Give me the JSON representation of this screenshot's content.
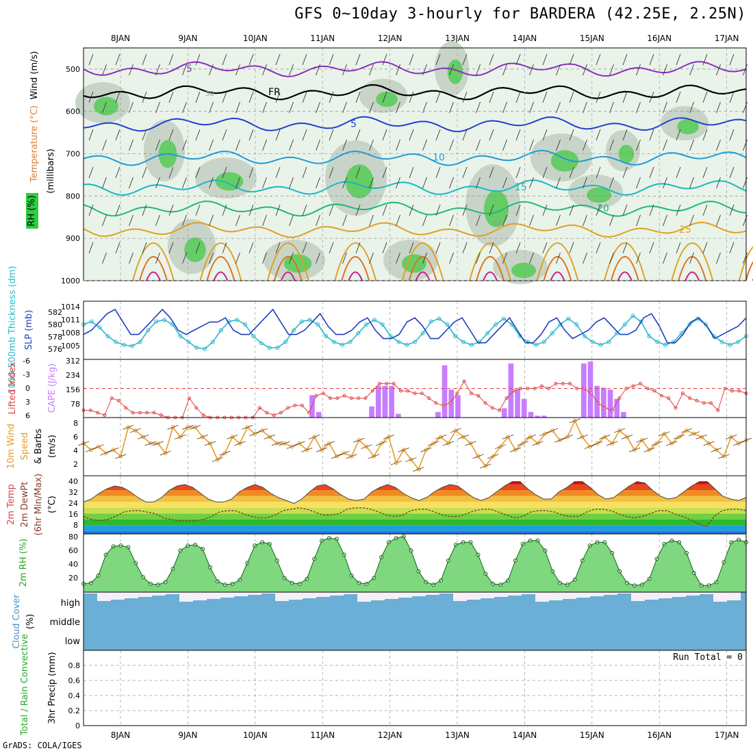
{
  "title": "GFS 0~10day 3-hourly for BARDERA (42.25E, 2.25N)",
  "credit": "GrADS: COLA/IGES",
  "dates": [
    "8JAN",
    "9JAN",
    "10JAN",
    "11JAN",
    "12JAN",
    "13JAN",
    "14JAN",
    "15JAN",
    "16JAN",
    "17JAN"
  ],
  "colors": {
    "rh_green": "#2ecc40",
    "wind_barb": "#333333",
    "cloud": "#6baed6",
    "cape": "#c77dff",
    "slp": "#1f3fbf",
    "thick": "#2ab7c9",
    "li": "#e04040",
    "wind": "#e69b2b",
    "rh2m": "#22bb22"
  },
  "chart_data": [
    {
      "type": "heatmap",
      "name": "upper-air",
      "ylabel_parts": [
        "Wind (m/s)",
        "Temperature (°C)",
        "RH (%)"
      ],
      "ylabel_axis": "(millibars)",
      "ylim": [
        1000,
        450
      ],
      "yticks": [
        500,
        600,
        700,
        800,
        900,
        1000
      ],
      "contours": [
        {
          "label": "5",
          "level_mb": 500,
          "color": "#8a2bbf"
        },
        {
          "label": "FR",
          "level_mb": 555,
          "color": "#000000"
        },
        {
          "label": "5",
          "level_mb": 630,
          "color": "#1f3fcf"
        },
        {
          "label": "10",
          "level_mb": 710,
          "color": "#1e9bd7"
        },
        {
          "label": "15",
          "level_mb": 780,
          "color": "#19b8c0"
        },
        {
          "label": "20",
          "level_mb": 830,
          "color": "#1fb87a"
        },
        {
          "label": "25",
          "level_mb": 880,
          "color": "#e0a020"
        }
      ],
      "rh_labels": [
        "30",
        "50"
      ]
    },
    {
      "type": "line",
      "name": "slp-thickness",
      "ylabel_left": "1000-500mb Thickness (dm)",
      "ylabel_right": "SLP (mb)",
      "left_ticks": [
        "582",
        "580",
        "578",
        "576"
      ],
      "right_ticks": [
        "1014",
        "1011",
        "1008",
        "1005"
      ],
      "slp": [
        1008,
        1009,
        1011,
        1013,
        1014,
        1011,
        1008,
        1008,
        1010,
        1012,
        1014,
        1012,
        1009,
        1008,
        1009,
        1010,
        1011,
        1011,
        1012,
        1009,
        1008,
        1008,
        1010,
        1012,
        1014,
        1011,
        1008,
        1008,
        1009,
        1011,
        1013,
        1010,
        1008,
        1008,
        1009,
        1011,
        1012,
        1009,
        1007,
        1007,
        1008,
        1011,
        1012,
        1010,
        1007,
        1007,
        1009,
        1011,
        1012,
        1009,
        1006,
        1006,
        1008,
        1010,
        1012,
        1009,
        1006,
        1006,
        1008,
        1011,
        1012,
        1009,
        1007,
        1008,
        1009,
        1011,
        1012,
        1010,
        1008,
        1008,
        1009,
        1012,
        1013,
        1010,
        1006,
        1006,
        1008,
        1011,
        1012,
        1010,
        1007,
        1008,
        1009,
        1010,
        1012
      ],
      "thickness": [
        580,
        580.5,
        579.5,
        578,
        577,
        576.5,
        576.3,
        577,
        579,
        580.5,
        580.8,
        580,
        578,
        577,
        576,
        575.8,
        577,
        579,
        580.5,
        580.8,
        580,
        578,
        576.8,
        576,
        576,
        577,
        579,
        580.5,
        580.8,
        580,
        578,
        577,
        576.5,
        577,
        578.5,
        580,
        580.8,
        580,
        578,
        577,
        576.5,
        577,
        578.5,
        580.5,
        581,
        580,
        578,
        577,
        576.5,
        577,
        578.5,
        580,
        581,
        580,
        578,
        577,
        576.5,
        577,
        578.5,
        580,
        581,
        580,
        578,
        577,
        576.5,
        577,
        578.5,
        580,
        581.5,
        580.5,
        578,
        577,
        576.5,
        577,
        578.5,
        580,
        581,
        580,
        578,
        577,
        576.5,
        577,
        578
      ]
    },
    {
      "type": "bar",
      "name": "cape-li",
      "ylabel_left": "Lifted Index",
      "ylabel_right": "CAPE (J/kg)",
      "li_ticks": [
        "-6",
        "-3",
        "0",
        "3",
        "6"
      ],
      "cape_ticks": [
        "312",
        "234",
        "156",
        "78"
      ],
      "cape": [
        0,
        0,
        0,
        0,
        0,
        0,
        0,
        0,
        0,
        0,
        0,
        0,
        0,
        0,
        0,
        0,
        0,
        0,
        0,
        0,
        0,
        0,
        0,
        0,
        0,
        0,
        0,
        0,
        0,
        0,
        0,
        0,
        0,
        0,
        120,
        30,
        0,
        0,
        0,
        0,
        0,
        0,
        0,
        60,
        170,
        170,
        170,
        20,
        0,
        0,
        0,
        0,
        0,
        30,
        280,
        150,
        120,
        0,
        0,
        0,
        0,
        0,
        0,
        50,
        290,
        150,
        100,
        30,
        10,
        10,
        0,
        0,
        0,
        0,
        0,
        290,
        300,
        170,
        160,
        150,
        100,
        30,
        0,
        0,
        0,
        0,
        0,
        0,
        0,
        0,
        0,
        0,
        0,
        0,
        0,
        0,
        0,
        0,
        0,
        0
      ],
      "li": [
        4.5,
        4.5,
        5,
        5.5,
        2,
        2.5,
        4,
        5,
        5,
        5,
        5,
        5.5,
        6,
        6,
        6,
        2,
        4,
        5.5,
        6,
        6,
        6,
        6,
        6,
        6,
        6,
        4,
        5,
        5.5,
        5,
        4,
        3.5,
        3.5,
        5,
        1.5,
        1,
        2,
        2,
        1.5,
        2,
        2,
        2,
        0.5,
        -1,
        -1,
        -1,
        0.5,
        0.5,
        1,
        1,
        2,
        3,
        3.5,
        3,
        1,
        -1.5,
        1,
        1.5,
        3,
        4,
        4.5,
        2,
        0.5,
        0,
        0,
        0,
        -0.5,
        0,
        -1,
        -1,
        -1,
        0,
        0,
        1,
        3,
        4,
        4.5,
        2,
        0,
        -0.5,
        -1,
        0,
        0.5,
        1.5,
        2,
        4,
        1,
        2,
        2.5,
        3,
        3,
        4.5,
        0,
        0.5,
        0.5,
        1
      ]
    },
    {
      "type": "line",
      "name": "wind10m",
      "ylabel": "10m Wind Speed & Barbs (m/s)",
      "yticks": [
        "8",
        "6",
        "4",
        "2"
      ],
      "speed": [
        5,
        4,
        4.5,
        3.5,
        4,
        3,
        7.5,
        7,
        6,
        5,
        5,
        3.5,
        7.5,
        6,
        7.5,
        7.5,
        6,
        5,
        2.5,
        3.5,
        6,
        5,
        7.5,
        6.5,
        7,
        6,
        5,
        5,
        4.5,
        5,
        4,
        6,
        4,
        5,
        3,
        3.5,
        3,
        5.5,
        4.5,
        3,
        5,
        6,
        2,
        4,
        2.5,
        1,
        4,
        5,
        6,
        5,
        7,
        6,
        5,
        3,
        1.5,
        3,
        4.5,
        6,
        4,
        5,
        6,
        5,
        6.5,
        7,
        5.5,
        6,
        8.5,
        6,
        4.5,
        5,
        6,
        5,
        7,
        6,
        4,
        5.5,
        4,
        5,
        6.5,
        5,
        6,
        7,
        6.5,
        6,
        5,
        4,
        3,
        6,
        5,
        5.5
      ]
    },
    {
      "type": "area",
      "name": "temp2m",
      "ylabel": "2m Temp 2m DewPt (6hr Min/Max) (°C)",
      "yticks": [
        "40",
        "32",
        "24",
        "16",
        "8"
      ],
      "temp": [
        24,
        26,
        30,
        33,
        35,
        34,
        31,
        27,
        24,
        24,
        27,
        32,
        35,
        36,
        34,
        30,
        26,
        24,
        24,
        26,
        31,
        34,
        36,
        34,
        30,
        27,
        25,
        23,
        26,
        31,
        35,
        36,
        33,
        29,
        26,
        25,
        26,
        31,
        34,
        36,
        34,
        30,
        27,
        25,
        27,
        31,
        34,
        36,
        35,
        31,
        27,
        25,
        27,
        31,
        35,
        38,
        38,
        33,
        29,
        26,
        26,
        31,
        34,
        38,
        38,
        34,
        29,
        26,
        27,
        31,
        35,
        38,
        37,
        32,
        28,
        26,
        27,
        31,
        35,
        38,
        38,
        33,
        28,
        26,
        25,
        27
      ],
      "dewpt": [
        14,
        12,
        11,
        12,
        14,
        17,
        18,
        18,
        17,
        16,
        13,
        12,
        11,
        11,
        11,
        12,
        14,
        17,
        18,
        18,
        16,
        14,
        13,
        13,
        15,
        18,
        19,
        20,
        19,
        17,
        15,
        15,
        16,
        19,
        20,
        20,
        19,
        17,
        15,
        14,
        15,
        18,
        19,
        19,
        17,
        15,
        14,
        14,
        16,
        18,
        19,
        19,
        17,
        15,
        13,
        14,
        17,
        18,
        18,
        17,
        15,
        14,
        14,
        17,
        19,
        19,
        18,
        16,
        14,
        13,
        14,
        16,
        18,
        18,
        16,
        14,
        12,
        9,
        7,
        14,
        18,
        19,
        19,
        18
      ]
    },
    {
      "type": "area",
      "name": "rh2m",
      "ylabel": "2m RH (%)",
      "yticks": [
        "80",
        "60",
        "40",
        "20"
      ],
      "rh": [
        20,
        21,
        30,
        55,
        65,
        66,
        64,
        45,
        28,
        20,
        19,
        22,
        38,
        60,
        66,
        67,
        62,
        40,
        23,
        19,
        20,
        25,
        45,
        66,
        70,
        68,
        48,
        27,
        21,
        20,
        26,
        50,
        72,
        75,
        74,
        55,
        30,
        21,
        20,
        27,
        52,
        70,
        75,
        77,
        60,
        35,
        22,
        19,
        24,
        48,
        67,
        70,
        70,
        55,
        32,
        20,
        19,
        24,
        48,
        68,
        72,
        72,
        60,
        35,
        21,
        19,
        25,
        48,
        66,
        70,
        70,
        57,
        35,
        21,
        18,
        19,
        26,
        50,
        68,
        72,
        70,
        57,
        33,
        18,
        18,
        22,
        46,
        70,
        73,
        70
      ]
    },
    {
      "type": "bar",
      "name": "cloud",
      "ylabel": "Cloud Cover (%)",
      "levels": [
        "high",
        "middle",
        "low"
      ]
    },
    {
      "type": "bar",
      "name": "precip",
      "ylabel_left": "Total / Rain Convective",
      "ylabel_right": "3hr Precip (mm)",
      "yticks": [
        "0.8",
        "0.6",
        "0.4",
        "0.2",
        "0"
      ],
      "run_total": "Run Total = 0",
      "values": [
        0,
        0,
        0,
        0,
        0,
        0,
        0,
        0,
        0,
        0
      ]
    }
  ]
}
